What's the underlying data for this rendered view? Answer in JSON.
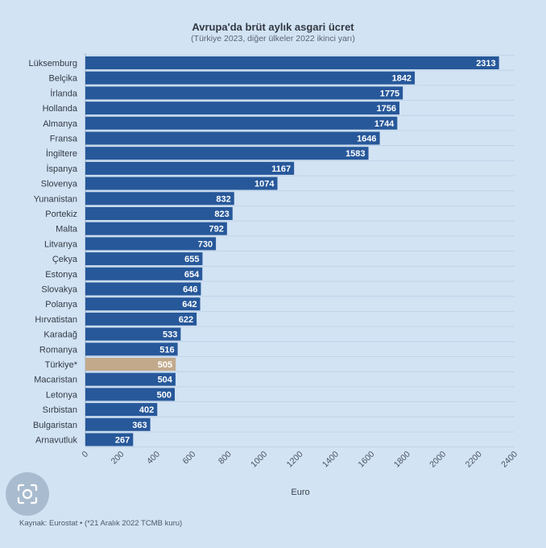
{
  "chart_data": {
    "type": "bar",
    "orientation": "horizontal",
    "title": "Avrupa'da brüt aylık asgari ücret",
    "subtitle": "(Türkiye 2023, diğer ülkeler 2022 ikinci yarı)",
    "xlabel": "Euro",
    "ylabel": "",
    "xlim": [
      0,
      2400
    ],
    "ticks": [
      0,
      200,
      400,
      600,
      800,
      1000,
      1200,
      1400,
      1600,
      1800,
      2000,
      2200,
      2400
    ],
    "categories": [
      "Lüksemburg",
      "Belçika",
      "İrlanda",
      "Hollanda",
      "Almanya",
      "Fransa",
      "İngiltere",
      "İspanya",
      "Slovenya",
      "Yunanistan",
      "Portekiz",
      "Malta",
      "Litvanya",
      "Çekya",
      "Estonya",
      "Slovakya",
      "Polanya",
      "Hırvatistan",
      "Karadağ",
      "Romanya",
      "Türkiye*",
      "Macaristan",
      "Letonya",
      "Sırbistan",
      "Bulgaristan",
      "Arnavutluk"
    ],
    "values": [
      2313,
      1842,
      1775,
      1756,
      1744,
      1646,
      1583,
      1167,
      1074,
      832,
      823,
      792,
      730,
      655,
      654,
      646,
      642,
      622,
      533,
      516,
      505,
      504,
      500,
      402,
      363,
      267
    ],
    "highlight": "Türkiye*",
    "colors": {
      "bar": "#27589a",
      "highlight": "#c2a98c",
      "gridline": "#bdcfe4",
      "label": "#ffffff"
    },
    "grid": true
  },
  "footer": {
    "source": "Kaynak: Eurostat • (*21 Aralık 2022 TCMB kuru)"
  },
  "icons": {
    "lens": "image-search-icon"
  }
}
